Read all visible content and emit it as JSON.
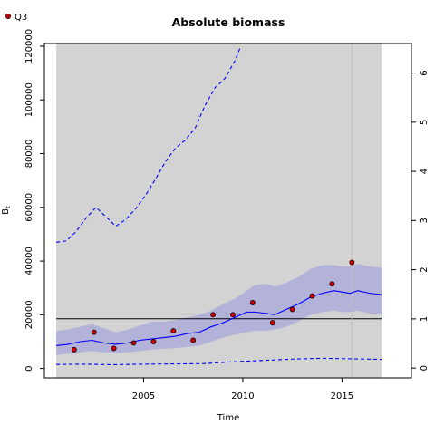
{
  "chart_data": {
    "type": "line",
    "title": "Absolute biomass",
    "xlabel": "Time",
    "ylabel": "B",
    "ylabel_sub": "t",
    "xlim": [
      2000.0,
      2018.5
    ],
    "ylim": [
      -3500,
      121000
    ],
    "y2lim": [
      -0.2,
      6.6
    ],
    "xticks": [
      2005,
      2010,
      2015
    ],
    "yticks": [
      0,
      20000,
      40000,
      60000,
      80000,
      100000,
      120000
    ],
    "y2ticks": [
      0,
      1,
      2,
      3,
      4,
      5,
      6
    ],
    "grid": false,
    "legend_position": "top-left",
    "legend": [
      {
        "label": "Q3",
        "marker": "point",
        "color": "#cc0000"
      }
    ],
    "shaded_period": [
      2000.6,
      2017.0
    ],
    "projection_start": 2015.5,
    "reference_line": 18500,
    "colors": {
      "panel_bg": "#d3d3d3",
      "estimate": "#0000ff",
      "ci_band": "#b3b3d9",
      "observation": "#cc0000",
      "reference": "#000000"
    },
    "series": [
      {
        "name": "Q3",
        "style": "points",
        "x": [
          2001.5,
          2002.5,
          2003.5,
          2004.5,
          2005.5,
          2006.5,
          2007.5,
          2008.5,
          2009.5,
          2010.5,
          2011.5,
          2012.5,
          2013.5,
          2014.5,
          2015.5
        ],
        "values": [
          7000,
          13500,
          7500,
          9500,
          10000,
          14000,
          10500,
          20000,
          20000,
          24500,
          17000,
          22000,
          27000,
          31500,
          39500
        ]
      },
      {
        "style": "solid",
        "x": [
          2000.6,
          2001.2,
          2001.8,
          2002.4,
          2003.0,
          2003.6,
          2004.2,
          2004.8,
          2005.4,
          2006.0,
          2006.6,
          2007.2,
          2007.8,
          2008.4,
          2009.0,
          2009.6,
          2010.2,
          2010.6,
          2011.2,
          2011.6,
          2012.2,
          2012.8,
          2013.4,
          2014.0,
          2014.6,
          2015.0,
          2015.4,
          2015.8,
          2016.4,
          2017.0
        ],
        "values": [
          8500,
          9000,
          10000,
          10500,
          9500,
          9000,
          9500,
          10500,
          11000,
          11500,
          12000,
          13000,
          13500,
          15500,
          17000,
          19000,
          21000,
          21000,
          20500,
          20000,
          22000,
          24000,
          26500,
          28000,
          29000,
          28500,
          28000,
          29000,
          28000,
          27500
        ]
      },
      {
        "style": "dashed",
        "x": [
          2000.6,
          2001.1,
          2001.6,
          2002.1,
          2002.6,
          2003.1,
          2003.6,
          2004.1,
          2004.6,
          2005.1,
          2005.6,
          2006.1,
          2006.6,
          2007.1,
          2007.6,
          2008.1,
          2008.6,
          2009.1,
          2009.6,
          2009.9
        ],
        "values": [
          47000,
          47500,
          51000,
          56000,
          60000,
          56500,
          53000,
          55500,
          59500,
          64500,
          70500,
          77000,
          82000,
          85000,
          89500,
          98000,
          104500,
          108000,
          114500,
          120000
        ]
      },
      {
        "style": "dashed",
        "x": [
          2000.6,
          2002.0,
          2003.5,
          2005.0,
          2006.5,
          2008.0,
          2009.5,
          2011.0,
          2012.5,
          2014.0,
          2015.5,
          2017.0
        ],
        "values": [
          1500,
          1600,
          1400,
          1600,
          1700,
          1800,
          2500,
          3000,
          3500,
          3800,
          3600,
          3400
        ]
      },
      {
        "style": "band",
        "x": [
          2000.6,
          2001.2,
          2001.8,
          2002.4,
          2003.0,
          2003.6,
          2004.2,
          2004.8,
          2005.4,
          2006.0,
          2006.6,
          2007.2,
          2007.8,
          2008.4,
          2009.0,
          2009.6,
          2010.2,
          2010.6,
          2011.2,
          2011.6,
          2012.2,
          2012.8,
          2013.4,
          2014.0,
          2014.6,
          2015.0,
          2015.4,
          2015.8,
          2016.4,
          2017.0
        ],
        "upper": [
          14000,
          14500,
          15500,
          16500,
          15000,
          13500,
          14500,
          16000,
          17500,
          17500,
          18000,
          19000,
          20000,
          21500,
          24000,
          26000,
          29000,
          31000,
          31500,
          30500,
          32000,
          34000,
          37000,
          38500,
          38500,
          38000,
          38000,
          39000,
          38000,
          37500
        ],
        "lower": [
          5000,
          5500,
          6000,
          6500,
          6000,
          5700,
          6000,
          6500,
          7000,
          7300,
          7600,
          8000,
          8500,
          10000,
          11500,
          12500,
          13500,
          14000,
          14000,
          14500,
          15500,
          17500,
          20000,
          21000,
          21500,
          21000,
          21000,
          21500,
          20500,
          20000
        ]
      }
    ]
  }
}
